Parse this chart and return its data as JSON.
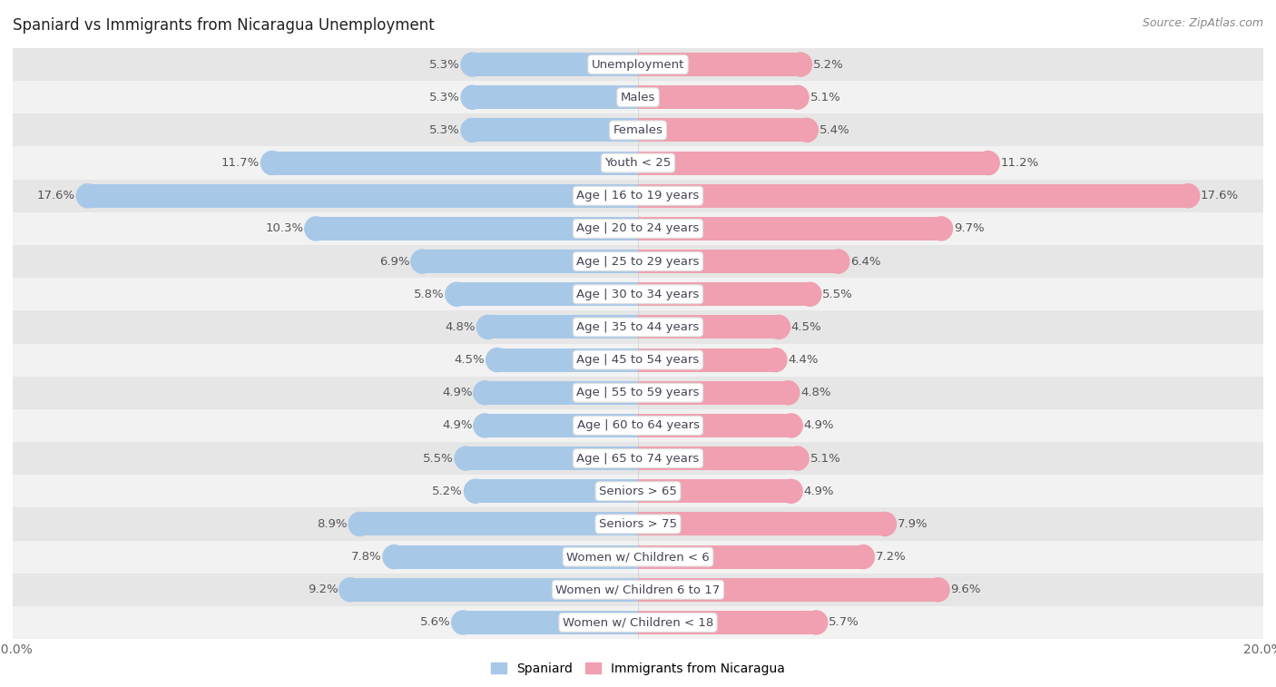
{
  "title": "Spaniard vs Immigrants from Nicaragua Unemployment",
  "source": "Source: ZipAtlas.com",
  "categories": [
    "Unemployment",
    "Males",
    "Females",
    "Youth < 25",
    "Age | 16 to 19 years",
    "Age | 20 to 24 years",
    "Age | 25 to 29 years",
    "Age | 30 to 34 years",
    "Age | 35 to 44 years",
    "Age | 45 to 54 years",
    "Age | 55 to 59 years",
    "Age | 60 to 64 years",
    "Age | 65 to 74 years",
    "Seniors > 65",
    "Seniors > 75",
    "Women w/ Children < 6",
    "Women w/ Children 6 to 17",
    "Women w/ Children < 18"
  ],
  "spaniard": [
    5.3,
    5.3,
    5.3,
    11.7,
    17.6,
    10.3,
    6.9,
    5.8,
    4.8,
    4.5,
    4.9,
    4.9,
    5.5,
    5.2,
    8.9,
    7.8,
    9.2,
    5.6
  ],
  "nicaragua": [
    5.2,
    5.1,
    5.4,
    11.2,
    17.6,
    9.7,
    6.4,
    5.5,
    4.5,
    4.4,
    4.8,
    4.9,
    5.1,
    4.9,
    7.9,
    7.2,
    9.6,
    5.7
  ],
  "spaniard_color": "#a8c8e8",
  "nicaragua_color": "#f0a0b0",
  "axis_max": 20.0,
  "row_bg_odd": "#f2f2f2",
  "row_bg_even": "#e6e6e6",
  "label_fontsize": 9.5,
  "title_fontsize": 12,
  "source_fontsize": 9
}
